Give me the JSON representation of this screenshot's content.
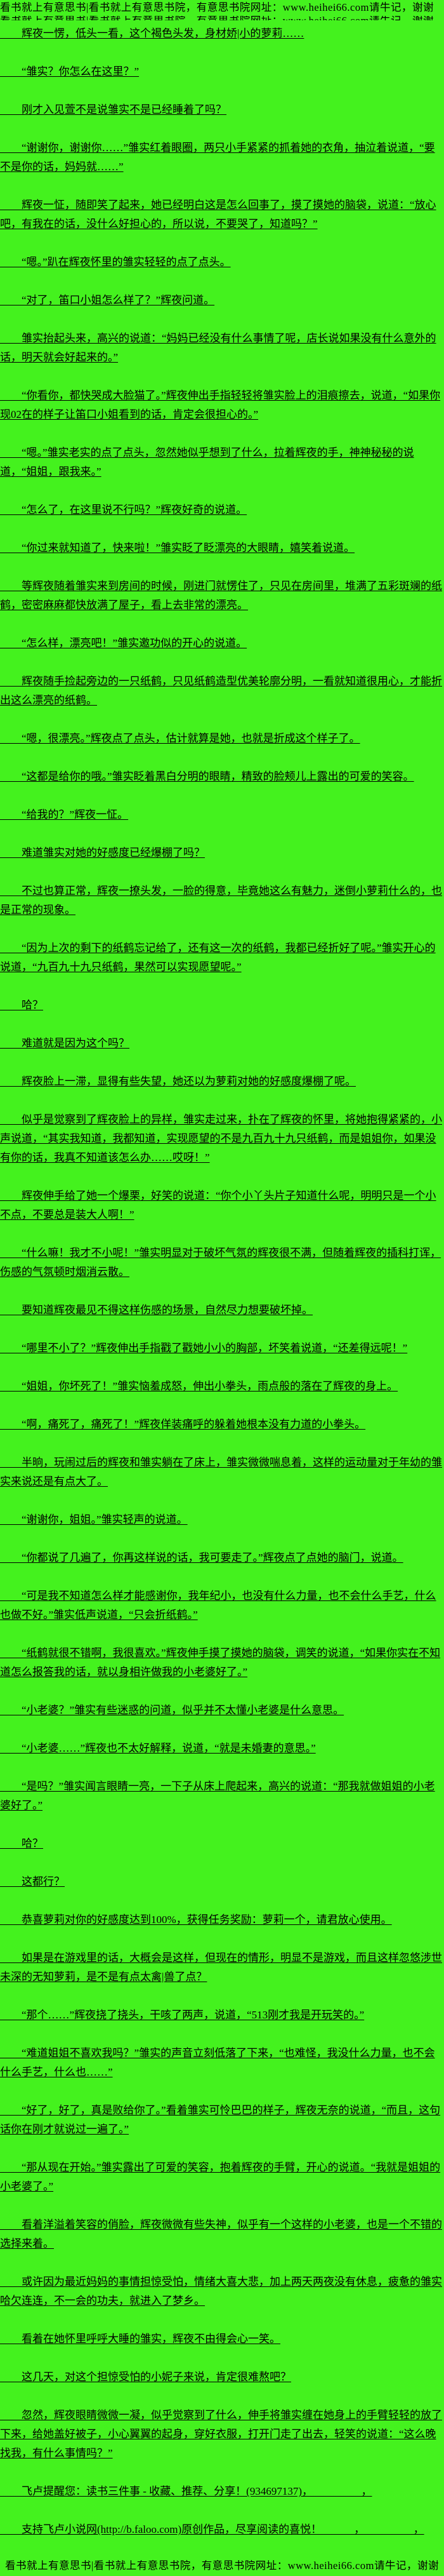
{
  "colors": {
    "background": "#44f21e",
    "text": "#000000"
  },
  "watermarks": {
    "top": "看书就上有意思书|看书就上有意思书院，有意思书院网址：www.heihei66.com请牛记，谢谢",
    "bottom": "看书就上有意思书|看书就上有意思书院，有意思书院网址：www.heihei66.com请牛记，谢谢"
  },
  "content": {
    "paragraphs": [
      "辉夜一愣，低头一看，这个褐色头发，身材娇|小的萝莉……",
      "“雏实？你怎么在这里？”",
      "刚才入见萱不是说雏实不是已经睡着了吗？",
      "“谢谢你，谢谢你……”雏实红着眼圈，两只小手紧紧的抓着她的衣角，抽泣着说道，“要不是你的话，妈妈就……”",
      "辉夜一怔，随即笑了起来，她已经明白这是怎么回事了，摸了摸她的脑袋，说道：“放心吧，有我在的话，没什么好担心的，所以说，不要哭了，知道吗？”",
      "“嗯。”趴在辉夜怀里的雏实轻轻的点了点头。",
      "“对了，笛口小姐怎么样了？”辉夜问道。",
      "雏实抬起头来，高兴的说道：“妈妈已经没有什么事情了呢，店长说如果没有什么意外的话，明天就会好起来的。”",
      "“你看你，都快哭成大脸猫了。”辉夜伸出手指轻轻将雏实脸上的泪痕擦去，说道，“如果你现02在的样子让笛口小姐看到的话，肯定会很担心的。”",
      "“嗯。”雏实老实的点了点头，忽然她似乎想到了什么，拉着辉夜的手，神神秘秘的说道，“姐姐，跟我来。”",
      "“怎么了，在这里说不行吗？”辉夜好奇的说道。",
      "“你过来就知道了，快来啦！”雏实眨了眨漂亮的大眼睛，嬉笑着说道。",
      "等辉夜随着雏实来到房间的时候，刚进门就愣住了，只见在房间里，堆满了五彩斑斓的纸鹤，密密麻麻都快放满了屋子，看上去非常的漂亮。",
      "“怎么样，漂亮吧！”雏实邀功似的开心的说道。",
      "辉夜随手捡起旁边的一只纸鹤，只见纸鹤造型优美轮廓分明，一看就知道很用心，才能折出这么漂亮的纸鹤。",
      "“嗯，很漂亮。”辉夜点了点头，估计就算是她，也就是折成这个样子了。",
      "“这都是给你的哦。”雏实眨着黑白分明的眼睛，精致的脸颊儿上露出的可爱的笑容。",
      "“给我的？”辉夜一怔。",
      "难道雏实对她的好感度已经爆棚了吗？",
      "不过也算正常，辉夜一撩头发，一脸的得意，毕竟她这么有魅力，迷倒小萝莉什么的，也是正常的现象。",
      "“因为上次的剩下的纸鹤忘记给了，还有这一次的纸鹤，我都已经折好了呢。”雏实开心的说道，“九百九十九只纸鹤，果然可以实现愿望呢。”",
      "哈？",
      "难道就是因为这个吗？",
      "辉夜脸上一滞，显得有些失望，她还以为萝莉对她的好感度爆棚了呢。",
      "似乎是觉察到了辉夜脸上的异样，雏实走过来，扑在了辉夜的怀里，将她抱得紧紧的，小声说道，“其实我知道，我都知道，实现愿望的不是九百九十九只纸鹤，而是姐姐你，如果没有你的话，我真不知道该怎么办……哎呀！”",
      "辉夜伸手给了她一个爆栗，好笑的说道：“你个小丫头片子知道什么呢，明明只是一个小不点，不要总是装大人啊！”",
      "“什么嘛！我才不小呢！”雏实明显对于破坏气氛的辉夜很不满，但随着辉夜的插科打诨，伤感的气氛顿时烟消云散。",
      "要知道辉夜最见不得这样伤感的场景，自然尽力想要破坏掉。",
      "“哪里不小了？”辉夜伸出手指戳了戳她小小的胸部，坏笑着说道，“还差得远呢！”",
      "“姐姐，你坏死了！”雏实恼羞成怒，伸出小拳头，雨点般的落在了辉夜的身上。",
      "“啊，痛死了，痛死了！”辉夜佯装痛呼的躲着她根本没有力道的小拳头。",
      "半晌，玩闹过后的辉夜和雏实躺在了床上，雏实微微喘息着，这样的运动量对于年幼的雏实来说还是有点大了。",
      "“谢谢你，姐姐。”雏实轻声的说道。",
      "“你都说了几遍了，你再这样说的话，我可要走了。”辉夜点了点她的脑门，说道。",
      "“可是我不知道怎么样才能感谢你，我年纪小，也没有什么力量，也不会什么手艺，什么也做不好。”雏实低声说道，“只会折纸鹤。”",
      "“纸鹤就很不错啊，我很喜欢。”辉夜伸手摸了摸她的脑袋，调笑的说道，“如果你实在不知道怎么报答我的话，就以身相许做我的小老婆好了。”",
      "“小老婆？”雏实有些迷惑的问道，似乎并不太懂小老婆是什么意思。",
      "“小老婆……”辉夜也不太好解释，说道，“就是未婚妻的意思。”",
      "“是吗？”雏实闻言眼睛一亮，一下子从床上爬起来，高兴的说道：“那我就做姐姐的小老婆好了。”",
      "哈？",
      "这都行？",
      "恭喜萝莉对你的好感度达到100%，获得任务奖励：萝莉一个，请君放心使用。",
      "如果是在游戏里的话，大概会是这样，但现在的情形，明显不是游戏，而且这样忽悠涉世未深的无知萝莉，是不是有点太禽|兽了点？",
      "“那个……”辉夜挠了挠头，干咳了两声，说道，“513刚才我是开玩笑的。”",
      "“难道姐姐不喜欢我吗？”雏实的声音立刻低落了下来，“也难怪，我没什么力量，也不会什么手艺，什么也……”",
      "“好了，好了，真是败给你了。”看着雏实可怜巴巴的样子，辉夜无奈的说道，“而且，这句话你在刚才就说过一遍了。”",
      "“那从现在开始。”雏实露出了可爱的笑容，抱着辉夜的手臂，开心的说道。“我就是姐姐的小老婆了。”",
      "看着洋溢着笑容的俏脸，辉夜微微有些失神，似乎有一个这样的小老婆，也是一个不错的选择来着。",
      "或许因为最近妈妈的事情担惊受怕，情绪大喜大悲，加上两天两夜没有休息，疲惫的雏实哈欠连连，不一会的功夫，就进入了梦乡。",
      "看着在她怀里呼呼大睡的雏实，辉夜不由得会心一笑。",
      "这几天，对这个担惊受怕的小妮子来说，肯定很难熬吧？",
      "忽然，辉夜眼睛微微一凝，似乎觉察到了什么，伸手将雏实缠在她身上的手臂轻轻的放了下来，给她盖好被子，小心翼翼的起身，穿好衣服，打开门走了出去，轻笑的说道：“这么晚找我，有什么事情吗？”"
    ],
    "notices": [
      "飞卢提醒您：读书三件事 - 收藏、推荐、分享！(934697137)，　　　　　，",
      "支持飞卢小说网(http://b.faloo.com)原创作品，尽享阅读的喜悦！　　　，　　　　　，"
    ]
  }
}
